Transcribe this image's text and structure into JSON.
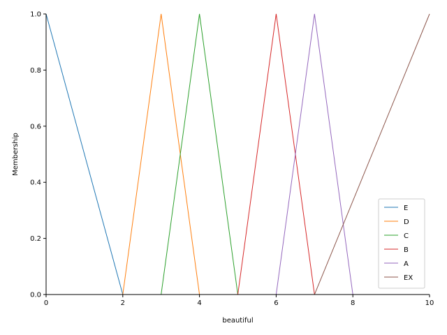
{
  "chart_data": {
    "type": "line",
    "xlabel": "beautiful",
    "ylabel": "Membership",
    "xlim": [
      0,
      10
    ],
    "ylim": [
      0,
      1
    ],
    "x_ticks": [
      0,
      2,
      4,
      6,
      8,
      10
    ],
    "y_ticks": [
      0.0,
      0.2,
      0.4,
      0.6,
      0.8,
      1.0
    ],
    "y_tick_labels": [
      "0.0",
      "0.2",
      "0.4",
      "0.6",
      "0.8",
      "1.0"
    ],
    "grid": false,
    "legend_position": "bottom-right",
    "series": [
      {
        "name": "E",
        "color": "#1f77b4",
        "x": [
          0,
          2,
          10
        ],
        "y": [
          1,
          0,
          0
        ]
      },
      {
        "name": "D",
        "color": "#ff7f0e",
        "x": [
          0,
          2,
          3,
          4,
          10
        ],
        "y": [
          0,
          0,
          1,
          0,
          0
        ]
      },
      {
        "name": "C",
        "color": "#2ca02c",
        "x": [
          0,
          3,
          4,
          5,
          10
        ],
        "y": [
          0,
          0,
          1,
          0,
          0
        ]
      },
      {
        "name": "B",
        "color": "#d62728",
        "x": [
          0,
          5,
          6,
          7,
          10
        ],
        "y": [
          0,
          0,
          1,
          0,
          0
        ]
      },
      {
        "name": "A",
        "color": "#9467bd",
        "x": [
          0,
          6,
          7,
          8,
          10
        ],
        "y": [
          0,
          0,
          1,
          0,
          0
        ]
      },
      {
        "name": "EX",
        "color": "#8c564b",
        "x": [
          0,
          7,
          10
        ],
        "y": [
          0,
          0,
          1
        ]
      }
    ]
  }
}
